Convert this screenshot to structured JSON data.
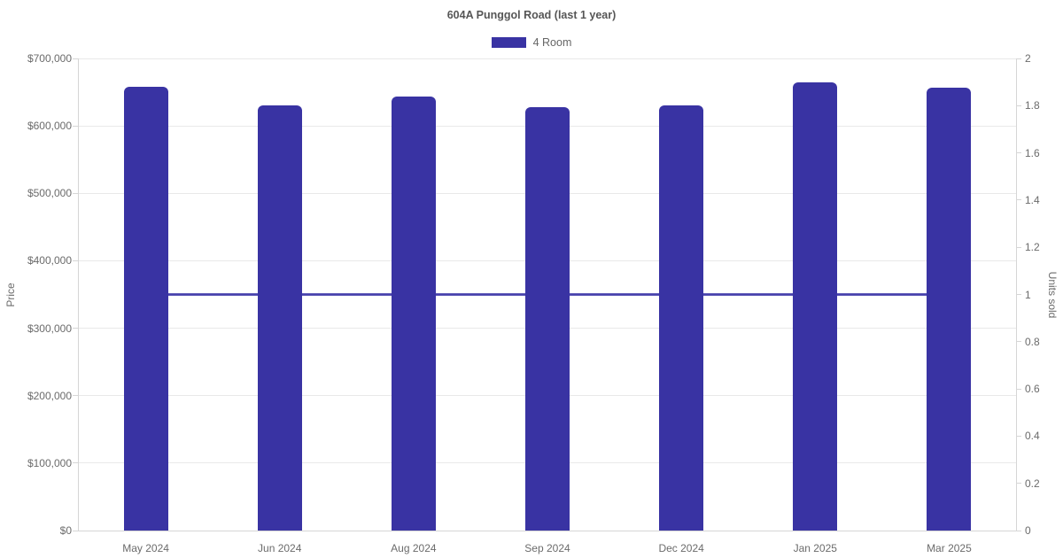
{
  "chart_data": {
    "type": "bar",
    "title": "604A Punggol Road (last 1 year)",
    "categories": [
      "May 2024",
      "Jun 2024",
      "Aug 2024",
      "Sep 2024",
      "Dec 2024",
      "Jan 2025",
      "Mar 2025"
    ],
    "series": [
      {
        "name": "4 Room",
        "kind": "bar",
        "axis": "left",
        "color": "#3933a3",
        "values": [
          658000,
          630000,
          644000,
          628000,
          630000,
          665000,
          657000
        ]
      },
      {
        "name": "4 Room units sold",
        "kind": "line",
        "axis": "right",
        "color": "#4641ab",
        "values": [
          1,
          1,
          1,
          1,
          1,
          1,
          1
        ]
      }
    ],
    "left_axis": {
      "title": "Price",
      "min": 0,
      "max": 700000,
      "tick_step": 100000,
      "tick_labels": [
        "$0",
        "$100,000",
        "$200,000",
        "$300,000",
        "$400,000",
        "$500,000",
        "$600,000",
        "$700,000"
      ]
    },
    "right_axis": {
      "title": "Units sold",
      "min": 0,
      "max": 2,
      "tick_step": 0.2,
      "tick_labels": [
        "0",
        "0.2",
        "0.4",
        "0.6",
        "0.8",
        "1",
        "1.2",
        "1.4",
        "1.6",
        "1.8",
        "2"
      ]
    },
    "legend": [
      {
        "label": "4 Room",
        "color": "#3933a3"
      }
    ],
    "legend_position": "top",
    "grid": "horizontal-only",
    "colors": {
      "grid": "#e9e9e9",
      "axis_border": "#d6d6d6",
      "tick_text": "#6b6b6b",
      "title_text": "#565656"
    }
  }
}
